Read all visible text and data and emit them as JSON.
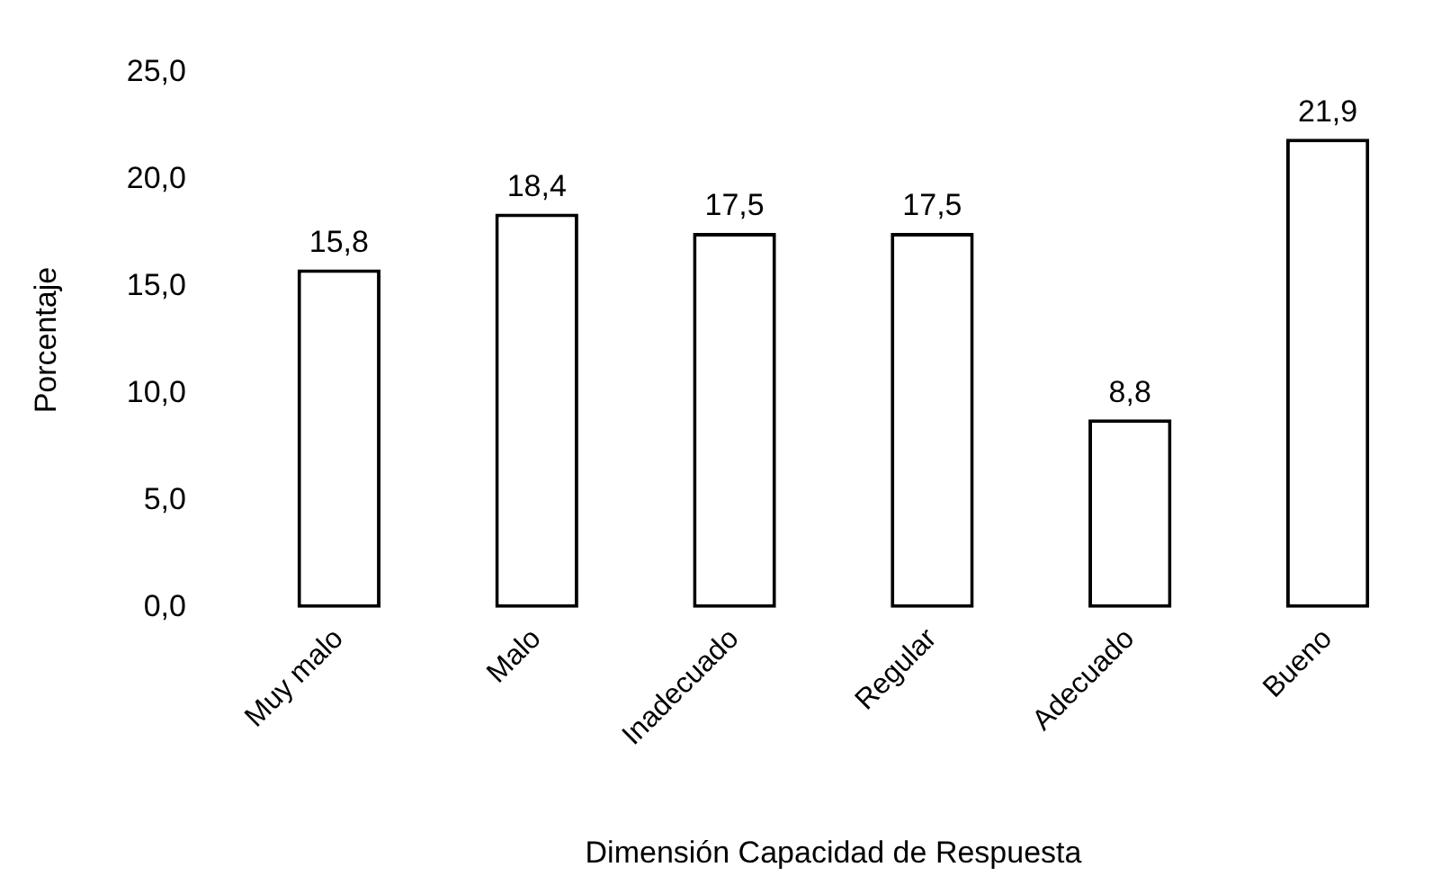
{
  "chart_data": {
    "type": "bar",
    "categories": [
      "Muy malo",
      "Malo",
      "Inadecuado",
      "Regular",
      "Adecuado",
      "Bueno"
    ],
    "values": [
      15.8,
      18.4,
      17.5,
      17.5,
      8.8,
      21.9
    ],
    "value_labels": [
      "15,8",
      "18,4",
      "17,5",
      "17,5",
      "8,8",
      "21,9"
    ],
    "color": "#ffffff",
    "ylim": [
      0,
      25
    ],
    "yticks": [
      {
        "value": 0,
        "label": "0,0"
      },
      {
        "value": 5,
        "label": "5,0"
      },
      {
        "value": 10,
        "label": "10,0"
      },
      {
        "value": 15,
        "label": "15,0"
      },
      {
        "value": 20,
        "label": "20,0"
      },
      {
        "value": 25,
        "label": "25,0"
      }
    ],
    "xlabel": "Dimensión Capacidad de Respuesta",
    "ylabel": "Porcentaje"
  }
}
